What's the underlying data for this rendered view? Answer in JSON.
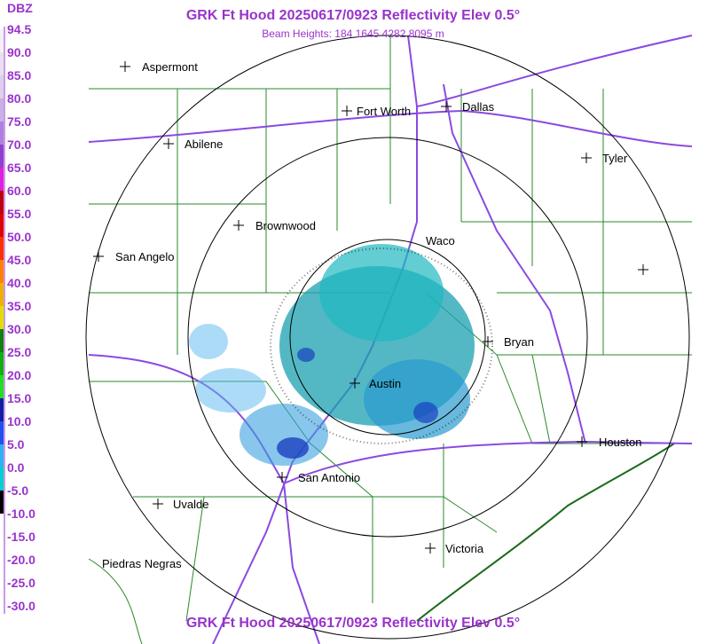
{
  "header": {
    "title": "GRK Ft Hood 20250617/0923 Reflectivity Elev 0.5°",
    "subtitle": "Beam Heights: 184 1645 4282 8095 m"
  },
  "footer": {
    "title": "GRK Ft Hood 20250617/0923 Reflectivity Elev 0.5°"
  },
  "legend": {
    "unit": "DBZ",
    "levels": [
      "94.5",
      "90.0",
      "85.0",
      "80.0",
      "75.0",
      "70.0",
      "65.0",
      "60.0",
      "55.0",
      "50.0",
      "45.0",
      "40.0",
      "35.0",
      "30.0",
      "25.0",
      "20.0",
      "15.0",
      "10.0",
      "5.0",
      "0.0",
      "-5.0",
      "-10.0",
      "-15.0",
      "-20.0",
      "-25.0",
      "-30.0"
    ]
  },
  "cities": [
    {
      "label": "Aspermont"
    },
    {
      "label": "Fort Worth"
    },
    {
      "label": "Dallas"
    },
    {
      "label": "Abilene"
    },
    {
      "label": "Tyler"
    },
    {
      "label": "Brownwood"
    },
    {
      "label": "Waco"
    },
    {
      "label": "San Angelo"
    },
    {
      "label": "Bryan"
    },
    {
      "label": "Austin"
    },
    {
      "label": "Houston"
    },
    {
      "label": "San Antonio"
    },
    {
      "label": "Uvalde"
    },
    {
      "label": "Victoria"
    },
    {
      "label": "Piedras Negras"
    }
  ]
}
